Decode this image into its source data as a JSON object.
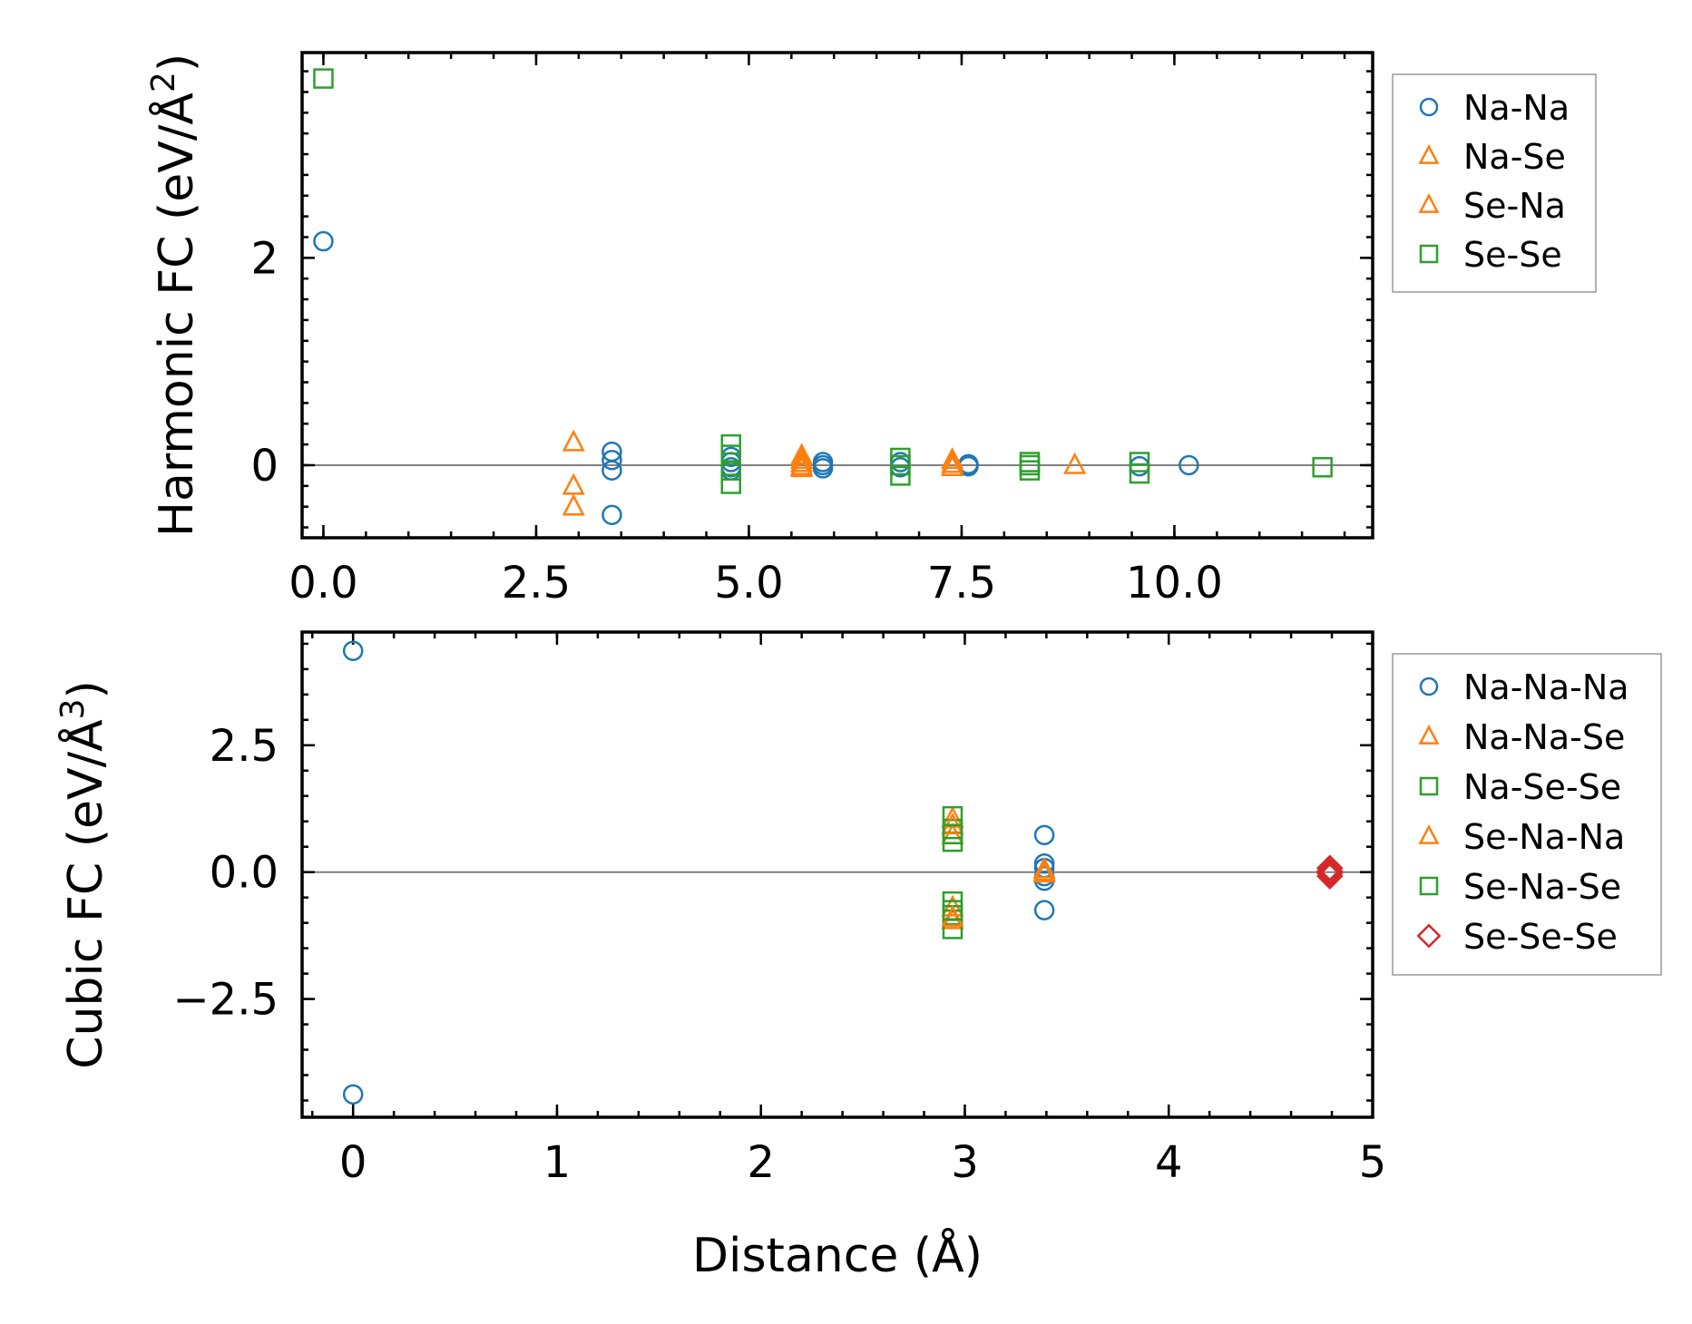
{
  "chart_data": [
    {
      "type": "scatter",
      "xlabel": "",
      "ylabel": "Harmonic FC (eV/Å",
      "ylabel_sup": "2",
      "ylabel_close": ")",
      "xlim": [
        -0.25,
        12.33
      ],
      "ylim": [
        -0.7,
        3.98
      ],
      "xticks": [
        0,
        2.5,
        5,
        7.5,
        10
      ],
      "xtick_labels": [
        "0.0",
        "2.5",
        "5.0",
        "7.5",
        "10.0"
      ],
      "yticks": [
        0,
        2
      ],
      "ytick_labels": [
        "0",
        "2"
      ],
      "zero_line": true,
      "legend_position": "outside right, top",
      "series": [
        {
          "name": "Na-Na",
          "marker": "circle",
          "color": "#1f77b4",
          "x": [
            0,
            3.39,
            3.39,
            3.39,
            3.39,
            4.79,
            4.79,
            4.79,
            4.79,
            5.87,
            5.87,
            5.87,
            6.78,
            6.78,
            7.58,
            7.58,
            9.59,
            10.17
          ],
          "y": [
            2.16,
            0.13,
            0.05,
            -0.05,
            -0.48,
            0.08,
            0.03,
            -0.02,
            -0.05,
            0.03,
            0.0,
            -0.03,
            0.03,
            -0.02,
            0.01,
            -0.01,
            -0.01,
            0.0
          ]
        },
        {
          "name": "Na-Se",
          "marker": "triangle",
          "color": "#ff7f0e",
          "x": [
            2.94,
            2.94,
            2.94,
            5.62,
            5.62,
            5.62,
            7.39,
            7.39,
            8.83
          ],
          "y": [
            0.22,
            -0.2,
            -0.4,
            0.09,
            0.02,
            -0.03,
            0.05,
            -0.02,
            0.0
          ]
        },
        {
          "name": "Se-Na",
          "marker": "triangle",
          "color": "#ff7f0e",
          "x": [
            5.62,
            5.62,
            7.39
          ],
          "y": [
            0.05,
            -0.01,
            0.01
          ]
        },
        {
          "name": "Se-Se",
          "marker": "square",
          "color": "#2ca02c",
          "x": [
            0,
            4.79,
            4.79,
            4.79,
            4.79,
            6.78,
            6.78,
            6.78,
            8.3,
            8.3,
            8.3,
            9.59,
            9.59,
            11.74
          ],
          "y": [
            3.73,
            0.2,
            0.1,
            -0.05,
            -0.18,
            0.07,
            0.0,
            -0.1,
            0.03,
            0.0,
            -0.05,
            0.03,
            -0.08,
            -0.02
          ]
        }
      ]
    },
    {
      "type": "scatter",
      "xlabel": "Distance (Å)",
      "ylabel": "Cubic FC (eV/Å",
      "ylabel_sup": "3",
      "ylabel_close": ")",
      "xlim": [
        -0.25,
        5.0
      ],
      "ylim": [
        -4.83,
        4.73
      ],
      "xticks": [
        0,
        1,
        2,
        3,
        4,
        5
      ],
      "xtick_labels": [
        "0",
        "1",
        "2",
        "3",
        "4",
        "5"
      ],
      "yticks": [
        -2.5,
        0,
        2.5
      ],
      "ytick_labels": [
        "−2.5",
        "0.0",
        "2.5"
      ],
      "zero_line": true,
      "legend_position": "outside right, top",
      "series": [
        {
          "name": "Na-Na-Na",
          "marker": "circle",
          "color": "#1f77b4",
          "x": [
            0,
            0,
            3.39,
            3.39,
            3.39,
            3.39,
            3.39,
            3.39
          ],
          "y": [
            4.36,
            -4.38,
            0.73,
            0.17,
            0.08,
            -0.08,
            -0.17,
            -0.75
          ]
        },
        {
          "name": "Na-Na-Se",
          "marker": "triangle",
          "color": "#ff7f0e",
          "x": [
            2.94,
            2.94,
            2.94,
            2.94,
            3.39,
            3.39
          ],
          "y": [
            1.05,
            0.72,
            -0.7,
            -0.95,
            0.05,
            -0.03
          ]
        },
        {
          "name": "Na-Se-Se",
          "marker": "square",
          "color": "#2ca02c",
          "x": [
            2.94,
            2.94,
            2.94,
            2.94,
            2.94,
            2.94
          ],
          "y": [
            1.1,
            0.85,
            0.6,
            -0.58,
            -0.85,
            -1.12
          ]
        },
        {
          "name": "Se-Na-Na",
          "marker": "triangle",
          "color": "#ff7f0e",
          "x": [
            2.94,
            2.94,
            3.39
          ],
          "y": [
            0.92,
            -0.9,
            0.0
          ]
        },
        {
          "name": "Se-Na-Se",
          "marker": "square",
          "color": "#2ca02c",
          "x": [
            2.94,
            2.94
          ],
          "y": [
            0.75,
            -0.75
          ]
        },
        {
          "name": "Se-Se-Se",
          "marker": "diamond",
          "color": "#d62728",
          "x": [
            4.79,
            4.79,
            4.79,
            4.79
          ],
          "y": [
            0.08,
            0.02,
            -0.02,
            -0.08
          ]
        }
      ]
    }
  ]
}
